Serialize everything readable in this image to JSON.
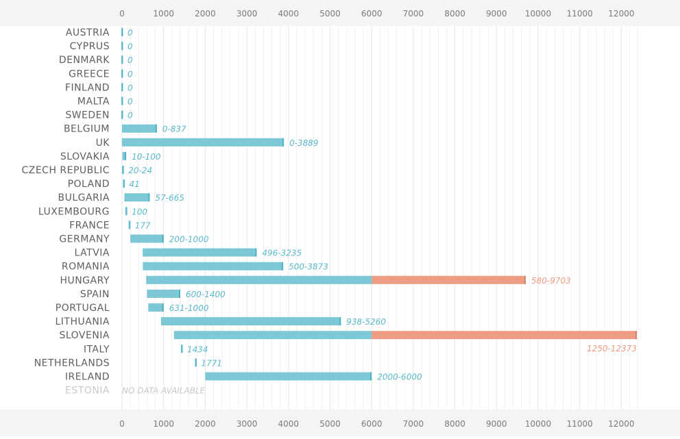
{
  "chart_data": {
    "type": "bar",
    "title": "",
    "xlabel": "",
    "ylabel": "",
    "xlim": [
      0,
      12500
    ],
    "x_ticks": [
      0,
      1000,
      2000,
      3000,
      4000,
      5000,
      6000,
      7000,
      8000,
      9000,
      10000,
      11000,
      12000
    ],
    "tick_labels": [
      "0",
      "1000",
      "2000",
      "3000",
      "4000",
      "5000",
      "6000",
      "7000",
      "8000",
      "9000",
      "10000",
      "11000",
      "12000"
    ],
    "orientation": "horizontal-range",
    "grid": true,
    "highlight_threshold": 6000,
    "colors": {
      "range": "#7cc8d6",
      "highlight": "#ee9c84",
      "label": "#5ab9cc",
      "label_highlight": "#ee9c84",
      "grid": "#e6e6e6",
      "axis_band": "#f4f4f4",
      "country": "#5e5e5e",
      "no_data": "#c9c9c9"
    },
    "rows": [
      {
        "country": "AUSTRIA",
        "min": 0,
        "max": 0,
        "label": "0"
      },
      {
        "country": "CYPRUS",
        "min": 0,
        "max": 0,
        "label": "0"
      },
      {
        "country": "DENMARK",
        "min": 0,
        "max": 0,
        "label": "0"
      },
      {
        "country": "GREECE",
        "min": 0,
        "max": 0,
        "label": "0"
      },
      {
        "country": "FINLAND",
        "min": 0,
        "max": 0,
        "label": "0"
      },
      {
        "country": "MALTA",
        "min": 0,
        "max": 0,
        "label": "0"
      },
      {
        "country": "SWEDEN",
        "min": 0,
        "max": 0,
        "label": "0"
      },
      {
        "country": "BELGIUM",
        "min": 0,
        "max": 837,
        "label": "0-837"
      },
      {
        "country": "UK",
        "min": 0,
        "max": 3889,
        "label": "0-3889"
      },
      {
        "country": "SLOVAKIA",
        "min": 10,
        "max": 100,
        "label": "10-100"
      },
      {
        "country": "CZECH REPUBLIC",
        "min": 20,
        "max": 24,
        "label": "20-24"
      },
      {
        "country": "POLAND",
        "min": 41,
        "max": 41,
        "label": "41"
      },
      {
        "country": "BULGARIA",
        "min": 57,
        "max": 665,
        "label": "57-665"
      },
      {
        "country": "LUXEMBOURG",
        "min": 100,
        "max": 100,
        "label": "100"
      },
      {
        "country": "FRANCE",
        "min": 177,
        "max": 177,
        "label": "177"
      },
      {
        "country": "GERMANY",
        "min": 200,
        "max": 1000,
        "label": "200-1000"
      },
      {
        "country": "LATVIA",
        "min": 496,
        "max": 3235,
        "label": "496-3235"
      },
      {
        "country": "ROMANIA",
        "min": 500,
        "max": 3873,
        "label": "500-3873"
      },
      {
        "country": "HUNGARY",
        "min": 580,
        "max": 9703,
        "label": "580-9703"
      },
      {
        "country": "SPAIN",
        "min": 600,
        "max": 1400,
        "label": "600-1400"
      },
      {
        "country": "PORTUGAL",
        "min": 631,
        "max": 1000,
        "label": "631-1000"
      },
      {
        "country": "LITHUANIA",
        "min": 938,
        "max": 5260,
        "label": "938-5260"
      },
      {
        "country": "SLOVENIA",
        "min": 1250,
        "max": 12373,
        "label": "1250-12373"
      },
      {
        "country": "ITALY",
        "min": 1434,
        "max": 1434,
        "label": "1434"
      },
      {
        "country": "NETHERLANDS",
        "min": 1771,
        "max": 1771,
        "label": "1771"
      },
      {
        "country": "IRELAND",
        "min": 2000,
        "max": 6000,
        "label": "2000-6000"
      },
      {
        "country": "ESTONIA",
        "min": null,
        "max": null,
        "label": "NO DATA AVAILABLE"
      }
    ]
  }
}
